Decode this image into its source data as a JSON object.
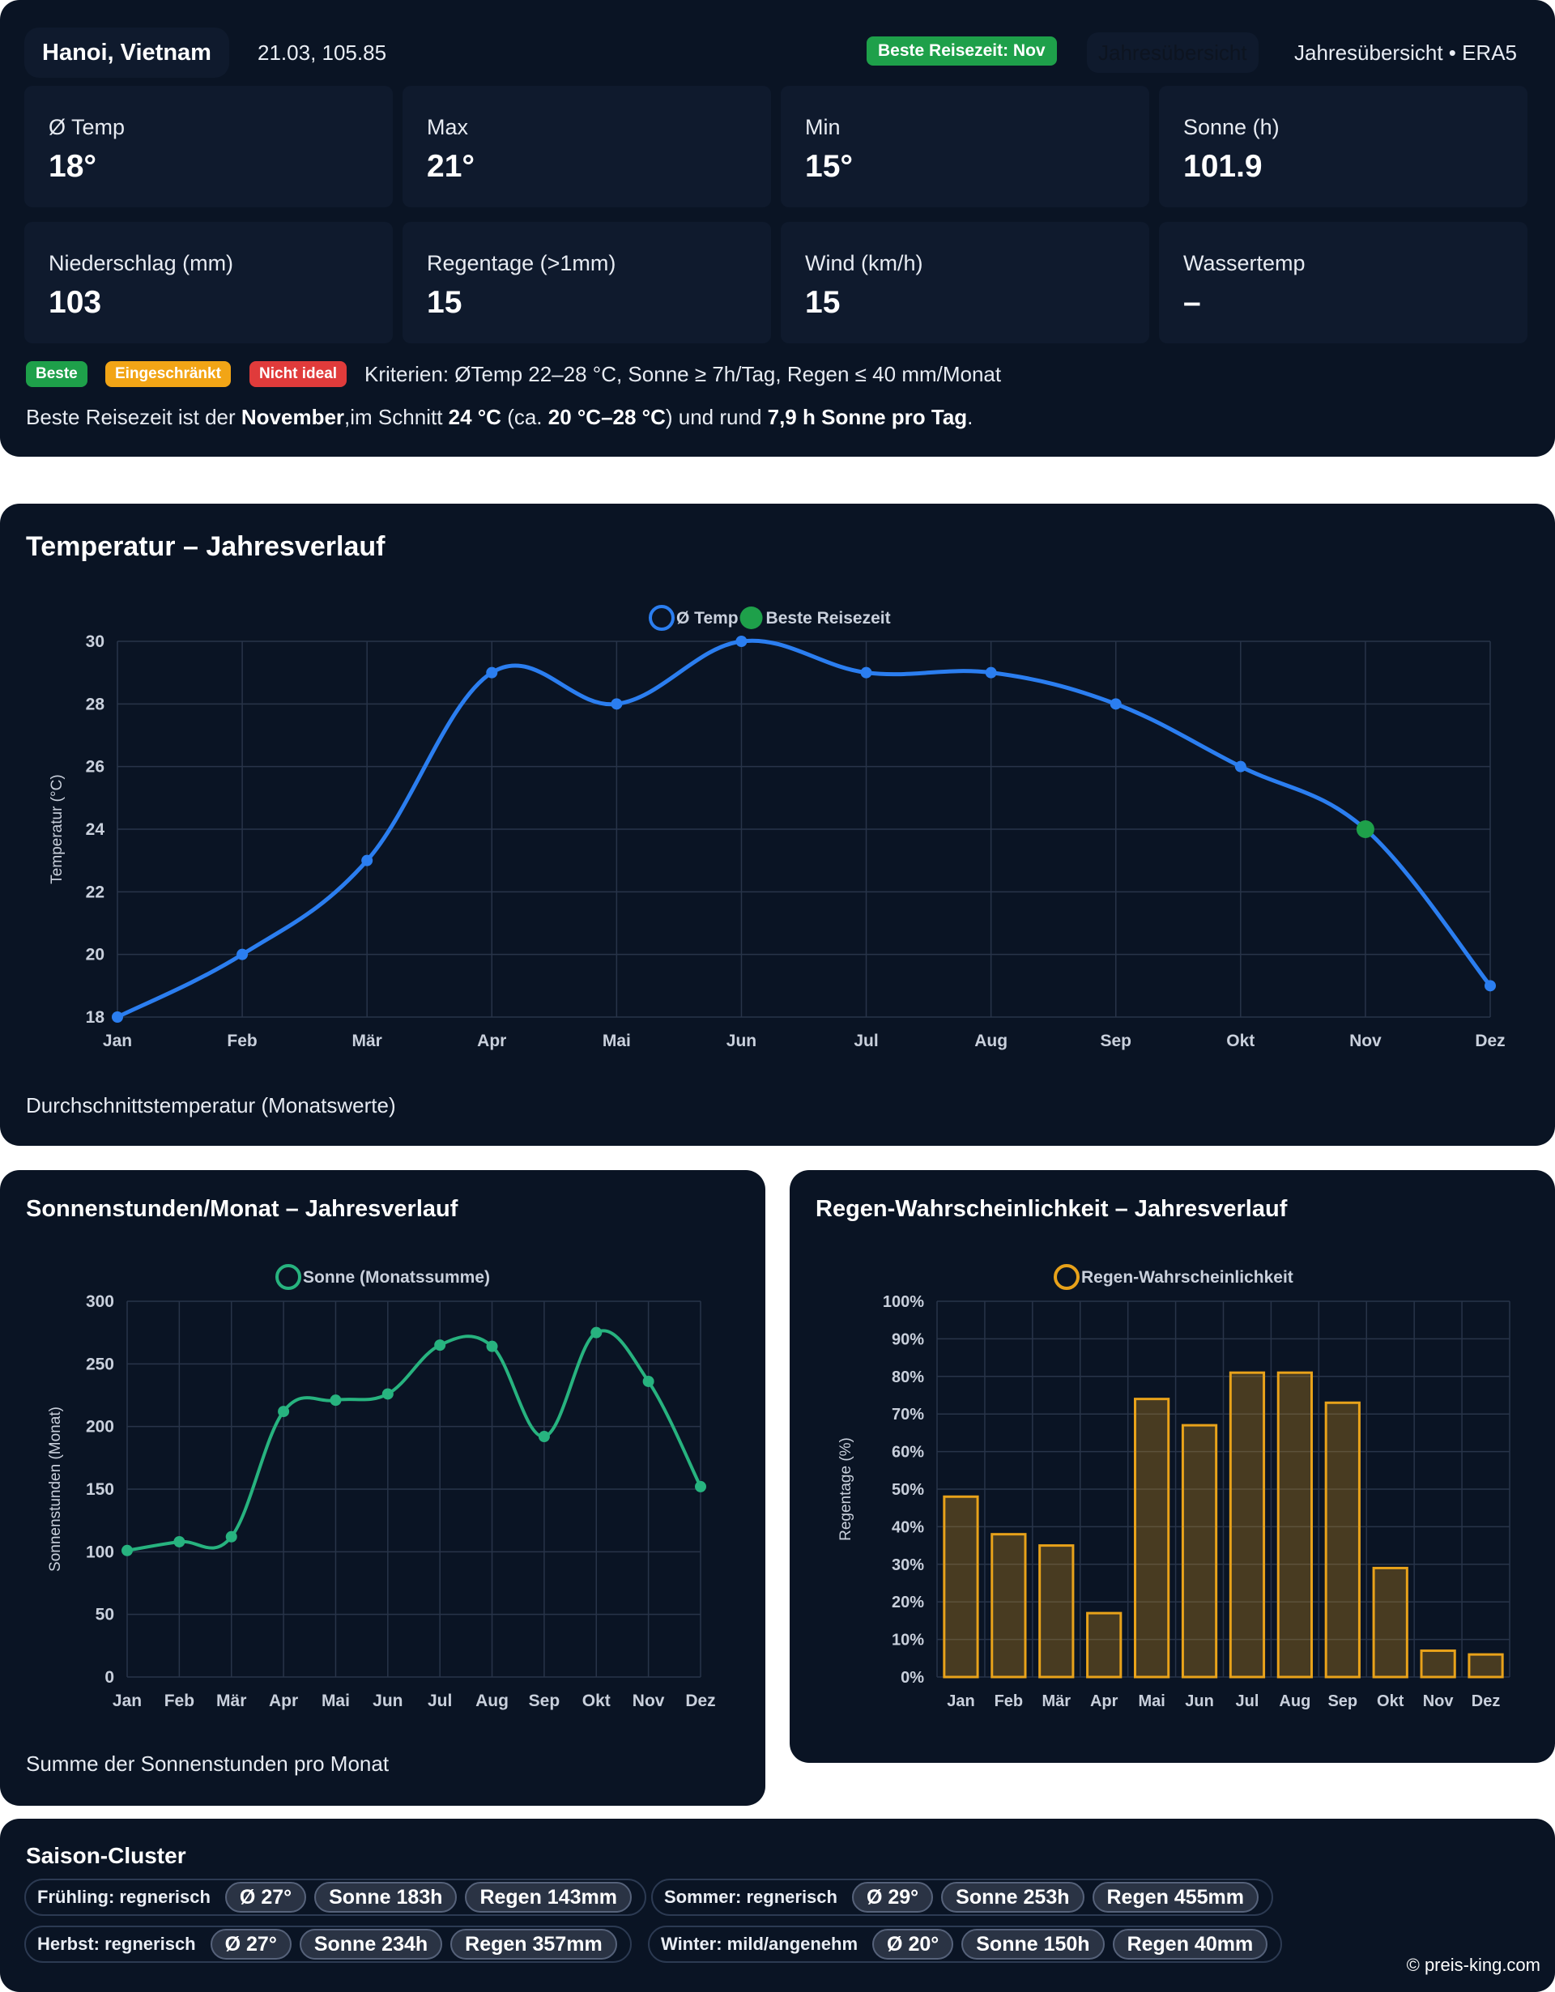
{
  "header": {
    "location": "Hanoi, Vietnam",
    "coords": "21.03, 105.85",
    "best_badge": "Beste Reisezeit: Nov",
    "ghost_tab": "Jahresübersicht",
    "source": "Jahresübersicht • ERA5"
  },
  "stats": [
    {
      "label": "Ø Temp",
      "value": "18°"
    },
    {
      "label": "Max",
      "value": "21°"
    },
    {
      "label": "Min",
      "value": "15°"
    },
    {
      "label": "Sonne (h)",
      "value": "101.9"
    },
    {
      "label": "Niederschlag (mm)",
      "value": "103"
    },
    {
      "label": "Regentage (>1mm)",
      "value": "15"
    },
    {
      "label": "Wind (km/h)",
      "value": "15"
    },
    {
      "label": "Wassertemp",
      "value": "–"
    }
  ],
  "legend_pills": {
    "best": "Beste",
    "limited": "Eingeschränkt",
    "not_ideal": "Nicht ideal"
  },
  "criteria": "Kriterien: ØTemp 22–28 °C, Sonne ≥ 7h/Tag, Regen ≤ 40 mm/Monat",
  "verdict": {
    "p1": "Beste Reisezeit ist der ",
    "month": "November",
    "p2": ",im Schnitt ",
    "avg": "24 °C",
    "p3": " (ca. ",
    "range": "20 °C–28 °C",
    "p4": ") und rund ",
    "sun": "7,9 h Sonne pro Tag",
    "p5": "."
  },
  "colors": {
    "temp": "#2b7ef0",
    "best": "#1ea04a",
    "sun": "#27b37f",
    "rain": "#e8a21a",
    "warn": "#f2a516",
    "bad": "#e03b3b"
  },
  "temp_panel": {
    "title": "Temperatur – Jahresverlauf",
    "caption": "Durchschnittstemperatur (Monatswerte)"
  },
  "sun_panel": {
    "title": "Sonnenstunden/Monat – Jahresverlauf",
    "caption": "Summe der Sonnenstunden pro Monat"
  },
  "rain_panel": {
    "title": "Regen-Wahrscheinlichkeit – Jahresverlauf"
  },
  "chart_data": [
    {
      "type": "line",
      "title": "Temperatur – Jahresverlauf",
      "categories": [
        "Jan",
        "Feb",
        "Mär",
        "Apr",
        "Mai",
        "Jun",
        "Jul",
        "Aug",
        "Sep",
        "Okt",
        "Nov",
        "Dez"
      ],
      "series": [
        {
          "name": "Ø Temp",
          "values": [
            18,
            20,
            23,
            29,
            28,
            30,
            29,
            29,
            28,
            26,
            24,
            19
          ]
        },
        {
          "name": "Beste Reisezeit",
          "values": [
            null,
            null,
            null,
            null,
            null,
            null,
            null,
            null,
            null,
            null,
            24,
            null
          ]
        }
      ],
      "xlabel": "",
      "ylabel": "Temperatur (°C)",
      "ylim": [
        18,
        30
      ],
      "yticks": [
        18,
        20,
        22,
        24,
        26,
        28,
        30
      ],
      "legend": "top-center",
      "grid": true
    },
    {
      "type": "line",
      "title": "Sonnenstunden/Monat – Jahresverlauf",
      "categories": [
        "Jan",
        "Feb",
        "Mär",
        "Apr",
        "Mai",
        "Jun",
        "Jul",
        "Aug",
        "Sep",
        "Okt",
        "Nov",
        "Dez"
      ],
      "series": [
        {
          "name": "Sonne (Monatssumme)",
          "values": [
            101,
            108,
            112,
            212,
            221,
            226,
            265,
            264,
            192,
            275,
            236,
            152
          ]
        }
      ],
      "xlabel": "",
      "ylabel": "Sonnenstunden (Monat)",
      "ylim": [
        0,
        300
      ],
      "yticks": [
        0,
        50,
        100,
        150,
        200,
        250,
        300
      ],
      "legend": "top-center",
      "grid": true
    },
    {
      "type": "bar",
      "title": "Regen-Wahrscheinlichkeit – Jahresverlauf",
      "categories": [
        "Jan",
        "Feb",
        "Mär",
        "Apr",
        "Mai",
        "Jun",
        "Jul",
        "Aug",
        "Sep",
        "Okt",
        "Nov",
        "Dez"
      ],
      "series": [
        {
          "name": "Regen-Wahrscheinlichkeit",
          "values": [
            48,
            38,
            35,
            17,
            74,
            67,
            81,
            81,
            73,
            29,
            7,
            6
          ]
        }
      ],
      "xlabel": "",
      "ylabel": "Regentage (%)",
      "ylim": [
        0,
        100
      ],
      "yticks": [
        0,
        10,
        20,
        30,
        40,
        50,
        60,
        70,
        80,
        90,
        100
      ],
      "tick_suffix": "%",
      "legend": "top-center",
      "grid": true
    }
  ],
  "seasons": {
    "title": "Saison-Cluster",
    "items": [
      {
        "name": "Frühling: regnerisch",
        "temp": "Ø 27°",
        "sun": "Sonne 183h",
        "rain": "Regen 143mm"
      },
      {
        "name": "Sommer: regnerisch",
        "temp": "Ø 29°",
        "sun": "Sonne 253h",
        "rain": "Regen 455mm"
      },
      {
        "name": "Herbst: regnerisch",
        "temp": "Ø 27°",
        "sun": "Sonne 234h",
        "rain": "Regen 357mm"
      },
      {
        "name": "Winter: mild/angenehm",
        "temp": "Ø 20°",
        "sun": "Sonne 150h",
        "rain": "Regen 40mm"
      }
    ],
    "copyright": "© preis-king.com"
  }
}
